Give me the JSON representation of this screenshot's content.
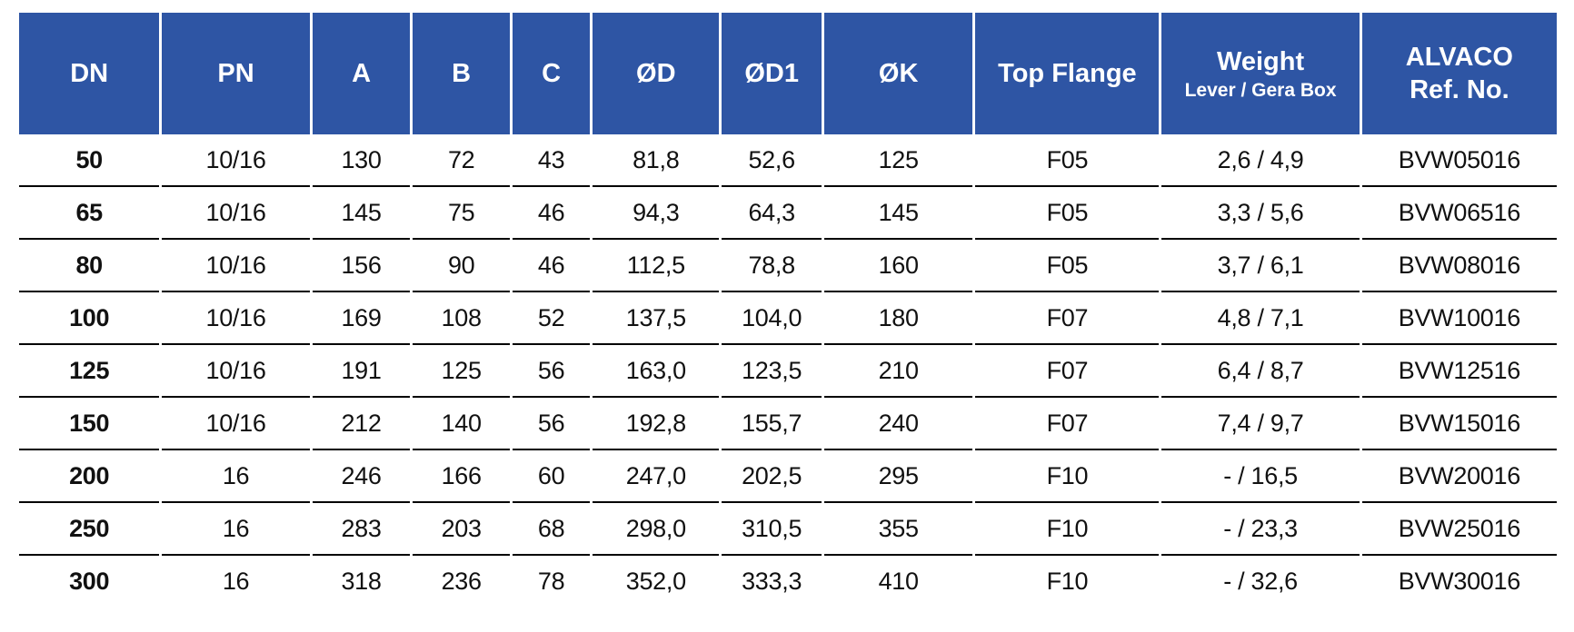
{
  "colors": {
    "header_bg": "#2e55a4",
    "header_text": "#ffffff",
    "row_line": "#000000",
    "body_text": "#111111"
  },
  "table": {
    "columns": [
      {
        "key": "dn",
        "label_lines": [
          "DN"
        ]
      },
      {
        "key": "pn",
        "label_lines": [
          "PN"
        ]
      },
      {
        "key": "a",
        "label_lines": [
          "A"
        ]
      },
      {
        "key": "b",
        "label_lines": [
          "B"
        ]
      },
      {
        "key": "c",
        "label_lines": [
          "C"
        ]
      },
      {
        "key": "od",
        "label_lines": [
          "ØD"
        ]
      },
      {
        "key": "od1",
        "label_lines": [
          "ØD1"
        ]
      },
      {
        "key": "ok",
        "label_lines": [
          "ØK"
        ]
      },
      {
        "key": "top_flange",
        "label_lines": [
          "Top Flange"
        ]
      },
      {
        "key": "weight",
        "label_lines": [
          "Weight"
        ],
        "sublabel": "Lever / Gera Box"
      },
      {
        "key": "ref",
        "label_lines": [
          "ALVACO",
          "Ref. No."
        ]
      }
    ],
    "rows": [
      {
        "dn": "50",
        "pn": "10/16",
        "a": "130",
        "b": "72",
        "c": "43",
        "od": "81,8",
        "od1": "52,6",
        "ok": "125",
        "top_flange": "F05",
        "weight": "2,6 / 4,9",
        "ref": "BVW05016"
      },
      {
        "dn": "65",
        "pn": "10/16",
        "a": "145",
        "b": "75",
        "c": "46",
        "od": "94,3",
        "od1": "64,3",
        "ok": "145",
        "top_flange": "F05",
        "weight": "3,3 / 5,6",
        "ref": "BVW06516"
      },
      {
        "dn": "80",
        "pn": "10/16",
        "a": "156",
        "b": "90",
        "c": "46",
        "od": "112,5",
        "od1": "78,8",
        "ok": "160",
        "top_flange": "F05",
        "weight": "3,7 / 6,1",
        "ref": "BVW08016"
      },
      {
        "dn": "100",
        "pn": "10/16",
        "a": "169",
        "b": "108",
        "c": "52",
        "od": "137,5",
        "od1": "104,0",
        "ok": "180",
        "top_flange": "F07",
        "weight": "4,8 / 7,1",
        "ref": "BVW10016"
      },
      {
        "dn": "125",
        "pn": "10/16",
        "a": "191",
        "b": "125",
        "c": "56",
        "od": "163,0",
        "od1": "123,5",
        "ok": "210",
        "top_flange": "F07",
        "weight": "6,4 / 8,7",
        "ref": "BVW12516"
      },
      {
        "dn": "150",
        "pn": "10/16",
        "a": "212",
        "b": "140",
        "c": "56",
        "od": "192,8",
        "od1": "155,7",
        "ok": "240",
        "top_flange": "F07",
        "weight": "7,4 / 9,7",
        "ref": "BVW15016"
      },
      {
        "dn": "200",
        "pn": "16",
        "a": "246",
        "b": "166",
        "c": "60",
        "od": "247,0",
        "od1": "202,5",
        "ok": "295",
        "top_flange": "F10",
        "weight": "- / 16,5",
        "ref": "BVW20016"
      },
      {
        "dn": "250",
        "pn": "16",
        "a": "283",
        "b": "203",
        "c": "68",
        "od": "298,0",
        "od1": "310,5",
        "ok": "355",
        "top_flange": "F10",
        "weight": "- / 23,3",
        "ref": "BVW25016"
      },
      {
        "dn": "300",
        "pn": "16",
        "a": "318",
        "b": "236",
        "c": "78",
        "od": "352,0",
        "od1": "333,3",
        "ok": "410",
        "top_flange": "F10",
        "weight": "- / 32,6",
        "ref": "BVW30016"
      }
    ]
  }
}
